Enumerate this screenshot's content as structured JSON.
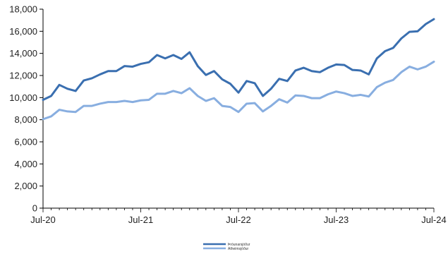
{
  "chart_data": {
    "type": "line",
    "title": "",
    "xlabel": "",
    "ylabel": "",
    "ylim": [
      0,
      18000
    ],
    "yticks": [
      0,
      2000,
      4000,
      6000,
      8000,
      10000,
      12000,
      14000,
      16000,
      18000
    ],
    "ytick_labels": [
      "0",
      "2,000",
      "4,000",
      "6,000",
      "8,000",
      "10,000",
      "12,000",
      "14,000",
      "16,000",
      "18,000"
    ],
    "xticks": [
      "Jul-20",
      "Jul-21",
      "Jul-22",
      "Jul-23",
      "Jul-24"
    ],
    "x": [
      "2020-07",
      "2020-08",
      "2020-09",
      "2020-10",
      "2020-11",
      "2020-12",
      "2021-01",
      "2021-02",
      "2021-03",
      "2021-04",
      "2021-05",
      "2021-06",
      "2021-07",
      "2021-08",
      "2021-09",
      "2021-10",
      "2021-11",
      "2021-12",
      "2022-01",
      "2022-02",
      "2022-03",
      "2022-04",
      "2022-05",
      "2022-06",
      "2022-07",
      "2022-08",
      "2022-09",
      "2022-10",
      "2022-11",
      "2022-12",
      "2023-01",
      "2023-02",
      "2023-03",
      "2023-04",
      "2023-05",
      "2023-06",
      "2023-07",
      "2023-08",
      "2023-09",
      "2023-10",
      "2023-11",
      "2023-12",
      "2024-01",
      "2024-02",
      "2024-03",
      "2024-04",
      "2024-05",
      "2024-06",
      "2024-07"
    ],
    "grid": false,
    "legend_position": "bottom-center",
    "series": [
      {
        "name": "Þróunarsjóður",
        "color": "#3a6fb0",
        "values": [
          9800,
          10150,
          11150,
          10800,
          10600,
          11550,
          11750,
          12100,
          12400,
          12400,
          12850,
          12800,
          13050,
          13200,
          13850,
          13550,
          13850,
          13500,
          14100,
          12850,
          12050,
          12400,
          11650,
          11250,
          10450,
          11500,
          11300,
          10150,
          10800,
          11700,
          11500,
          12450,
          12700,
          12400,
          12300,
          12700,
          13000,
          12950,
          12500,
          12450,
          12100,
          13550,
          14200,
          14500,
          15350,
          15950,
          16000,
          16650,
          17100
        ]
      },
      {
        "name": "Atheimsjóður",
        "color": "#88aee0",
        "values": [
          8050,
          8300,
          8900,
          8750,
          8700,
          9250,
          9250,
          9450,
          9600,
          9600,
          9700,
          9600,
          9750,
          9800,
          10350,
          10350,
          10600,
          10400,
          10850,
          10150,
          9700,
          9950,
          9250,
          9150,
          8700,
          9450,
          9500,
          8750,
          9250,
          9850,
          9550,
          10200,
          10150,
          9950,
          9950,
          10300,
          10550,
          10400,
          10150,
          10250,
          10100,
          10950,
          11350,
          11600,
          12300,
          12800,
          12550,
          12800,
          13250
        ]
      }
    ]
  }
}
